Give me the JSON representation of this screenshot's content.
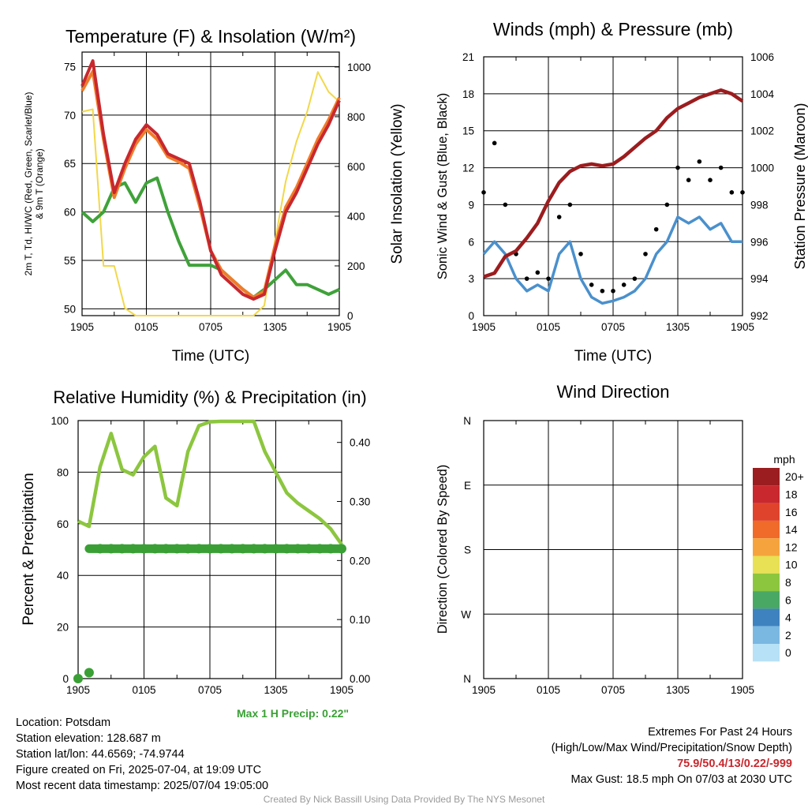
{
  "chart_data": [
    {
      "type": "line",
      "title": "Temperature (F) & Insolation (W/m²)",
      "xlabel": "Time (UTC)",
      "ylabel_left_line1": "2m T, Td, HI/WC (Red, Green, Scarlet/Blue)",
      "ylabel_left_line2": "& 9m T (Orange)",
      "ylabel_right": "Solar Insolation (Yellow)",
      "xticks": [
        "1905",
        "0105",
        "0705",
        "1305",
        "1905"
      ],
      "yticks_left": [
        50,
        55,
        60,
        65,
        70,
        75
      ],
      "yticks_right": [
        0,
        200,
        400,
        600,
        800,
        1000
      ],
      "ylim": [
        49.3,
        76.5
      ],
      "ylim_right": [
        0,
        1060
      ],
      "x": [
        0,
        1,
        2,
        3,
        4,
        5,
        6,
        7,
        8,
        9,
        10,
        11,
        12,
        13,
        14,
        15,
        16,
        17,
        18,
        19,
        20,
        21,
        22,
        23,
        24
      ],
      "series": [
        {
          "name": "2m T",
          "color": "#c8282e",
          "values": [
            73,
            75.6,
            68,
            62,
            65,
            67.5,
            69,
            68,
            66,
            65.5,
            65,
            61,
            56,
            53.5,
            52.5,
            51.5,
            51,
            51.5,
            56,
            60,
            62,
            64.5,
            67,
            69,
            71.5
          ]
        },
        {
          "name": "9m T",
          "color": "#f07c2a",
          "values": [
            72.5,
            74.5,
            67.5,
            61.5,
            64.5,
            67,
            68.5,
            67.5,
            65.7,
            65.2,
            64.5,
            60.5,
            56,
            54,
            53,
            52,
            51.2,
            51.8,
            56.5,
            60.5,
            62.5,
            65,
            67.5,
            69.5,
            71.8
          ]
        },
        {
          "name": "Td",
          "color": "#3fa23a",
          "values": [
            60,
            59,
            60,
            62.5,
            63,
            61,
            63,
            63.5,
            60,
            57,
            54.5,
            54.5,
            54.5,
            54,
            53,
            52,
            51.2,
            52,
            53,
            54,
            52.5,
            52.5,
            52,
            51.5,
            52
          ]
        },
        {
          "name": "Solar Insolation",
          "color": "#f2d84a",
          "axis": "right",
          "values": [
            820,
            830,
            200,
            200,
            30,
            0,
            0,
            0,
            0,
            0,
            0,
            0,
            0,
            0,
            0,
            0,
            0,
            40,
            300,
            540,
            700,
            820,
            980,
            900,
            860
          ]
        }
      ]
    },
    {
      "type": "line",
      "title": "Winds (mph) & Pressure (mb)",
      "xlabel": "Time (UTC)",
      "ylabel_left": "Sonic Wind & Gust (Blue, Black)",
      "ylabel_right": "Station Pressure (Maroon)",
      "xticks": [
        "1905",
        "0105",
        "0705",
        "1305",
        "1905"
      ],
      "yticks_left": [
        0,
        3,
        6,
        9,
        12,
        15,
        18,
        21
      ],
      "yticks_right": [
        992,
        994,
        996,
        998,
        1000,
        1002,
        1004,
        1006
      ],
      "ylim": [
        0,
        21
      ],
      "ylim_right": [
        992,
        1006
      ],
      "x": [
        0,
        1,
        2,
        3,
        4,
        5,
        6,
        7,
        8,
        9,
        10,
        11,
        12,
        13,
        14,
        15,
        16,
        17,
        18,
        19,
        20,
        21,
        22,
        23,
        24
      ],
      "series": [
        {
          "name": "Sonic Wind",
          "color": "#4a90cc",
          "values": [
            5,
            6,
            5,
            3,
            2,
            2.5,
            2,
            5,
            6,
            3,
            1.5,
            1,
            1.2,
            1.5,
            2,
            3,
            5,
            6,
            8,
            7.5,
            8,
            7,
            7.5,
            6,
            6
          ]
        },
        {
          "name": "Gust",
          "color": "#000000",
          "values": [
            10,
            14,
            9,
            5,
            3,
            3.5,
            3,
            8,
            9,
            5,
            2.5,
            2,
            2,
            2.5,
            3,
            5,
            7,
            9,
            12,
            11,
            12.5,
            11,
            12,
            10,
            10
          ]
        },
        {
          "name": "Station Pressure",
          "color": "#9b1d1f",
          "axis": "right",
          "values": [
            994.1,
            994.3,
            995.2,
            995.5,
            996.2,
            997,
            998.2,
            999.2,
            999.8,
            1000.1,
            1000.2,
            1000.1,
            1000.2,
            1000.6,
            1001.1,
            1001.6,
            1002,
            1002.7,
            1003.2,
            1003.5,
            1003.8,
            1004.0,
            1004.2,
            1004.0,
            1003.6
          ]
        }
      ]
    },
    {
      "type": "line",
      "title": "Relative Humidity (%) & Precipitation (in)",
      "xlabel": "",
      "ylabel_left": "Percent & Precipitation",
      "xticks": [
        "1905",
        "0105",
        "0705",
        "1305",
        "1905"
      ],
      "yticks_left": [
        0,
        20,
        40,
        60,
        80,
        100
      ],
      "yticks_right": [
        "0.00",
        "0.10",
        "0.20",
        "0.30",
        "0.40"
      ],
      "ylim": [
        0,
        100
      ],
      "ylim_right": [
        0,
        0.437
      ],
      "x": [
        0,
        1,
        2,
        3,
        4,
        5,
        6,
        7,
        8,
        9,
        10,
        11,
        12,
        13,
        14,
        15,
        16,
        17,
        18,
        19,
        20,
        21,
        22,
        23,
        24
      ],
      "series": [
        {
          "name": "Relative Humidity",
          "color": "#8cc63f",
          "values": [
            61,
            59,
            82,
            95,
            81,
            79,
            86,
            90,
            70,
            67,
            88,
            98,
            99.5,
            99.7,
            99.7,
            99.7,
            99.7,
            88,
            80,
            72,
            68,
            65,
            62,
            58,
            52
          ]
        },
        {
          "name": "Precipitation",
          "color": "#3aa035",
          "axis": "right",
          "values": [
            0,
            0.01,
            0.22,
            0.22,
            0.22,
            0.22,
            0.22,
            0.22,
            0.22,
            0.22,
            0.22,
            0.22,
            0.22,
            0.22,
            0.22,
            0.22,
            0.22,
            0.22,
            0.22,
            0.22,
            0.22,
            0.22,
            0.22,
            0.22,
            0.22
          ]
        }
      ],
      "annotation": "Max 1 H Precip: 0.22\""
    },
    {
      "type": "scatter",
      "title": "Wind Direction",
      "ylabel": "Direction (Colored By Speed)",
      "xticks": [
        "1905",
        "0105",
        "0705",
        "1305",
        "1905"
      ],
      "yticks": [
        "N",
        "E",
        "S",
        "W",
        "N"
      ],
      "legend_title": "mph",
      "legend_labels": [
        "20+",
        "18",
        "16",
        "14",
        "12",
        "10",
        "8",
        "6",
        "4",
        "2",
        "0"
      ],
      "legend_colors": [
        "#9b1d1f",
        "#c8282e",
        "#e0432c",
        "#f06a2a",
        "#f5a43d",
        "#e8e055",
        "#8cc63f",
        "#4aa865",
        "#3e82bf",
        "#7ab8e2",
        "#b7e1f6"
      ],
      "legend_placement": "right"
    }
  ],
  "info": {
    "location": "Location: Potsdam",
    "elevation": "Station elevation: 128.687 m",
    "latlon": "Station lat/lon: 44.6569; -74.9744",
    "created": "Figure created on Fri, 2025-07-04, at 19:09 UTC",
    "recent": "Most recent data timestamp: 2025/07/04 19:05:00"
  },
  "extremes": {
    "title": "Extremes For Past 24 Hours",
    "subtitle": "(High/Low/Max Wind/Precipitation/Snow Depth)",
    "values": "75.9/50.4/13/0.22/-999",
    "gust": "Max Gust: 18.5 mph On 07/03 at 2030 UTC"
  },
  "credit": "Created By Nick Bassill Using Data Provided By The NYS Mesonet"
}
